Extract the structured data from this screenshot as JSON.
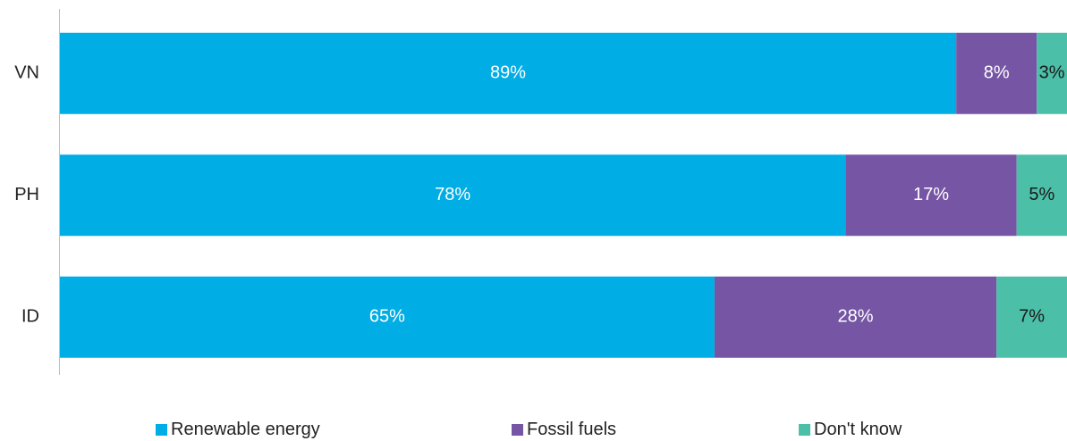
{
  "chart_data": {
    "type": "bar",
    "orientation": "horizontal",
    "stacked": true,
    "categories": [
      "VN",
      "PH",
      "ID"
    ],
    "series": [
      {
        "name": "Renewable energy",
        "values": [
          89,
          78,
          65
        ],
        "labels": [
          "89%",
          "78%",
          "65%"
        ],
        "color": "#00ADE4",
        "label_color": "#ffffff"
      },
      {
        "name": "Fossil fuels",
        "values": [
          8,
          17,
          28
        ],
        "labels": [
          "8%",
          "17%",
          "28%"
        ],
        "color": "#7655A5",
        "label_color": "#ffffff"
      },
      {
        "name": "Don't know",
        "values": [
          3,
          5,
          7
        ],
        "labels": [
          "3%",
          "5%",
          "7%"
        ],
        "color": "#4BBFA8",
        "label_color": "#1a1a1a"
      }
    ],
    "xlim": [
      0,
      100
    ],
    "grid": false,
    "legend_position": "bottom"
  }
}
